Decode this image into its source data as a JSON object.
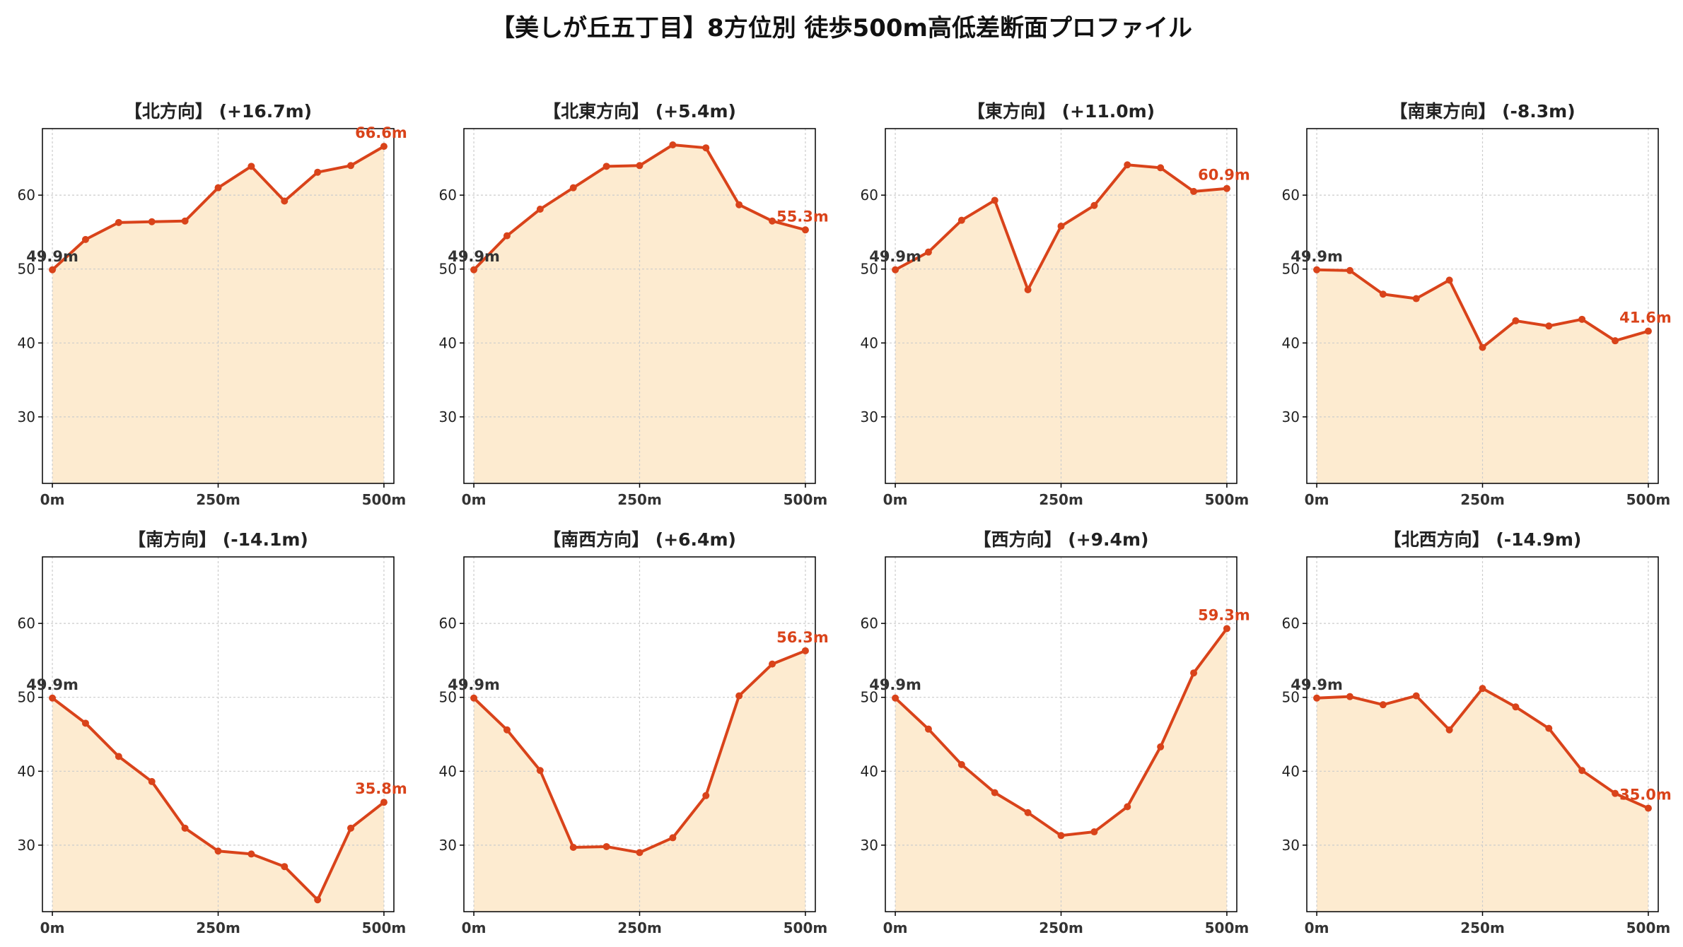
{
  "title": "【美しが丘五丁目】8方位別 徒歩500m高低差断面プロファイル",
  "colors": {
    "line": "#d9431a",
    "fill": "#fdebd0",
    "grid": "#cccccc",
    "start_label": "#333333"
  },
  "chart_data": [
    {
      "type": "area",
      "title": "【北方向】 (+16.7m)",
      "x": [
        0,
        50,
        100,
        150,
        200,
        250,
        300,
        350,
        400,
        450,
        500
      ],
      "y": [
        49.9,
        54.0,
        56.3,
        56.4,
        56.5,
        61.0,
        63.9,
        59.2,
        63.1,
        64.0,
        66.6
      ],
      "xticks": [
        "0m",
        "250m",
        "500m"
      ],
      "yticks": [
        30,
        40,
        50,
        60
      ],
      "ylim": [
        21,
        69
      ],
      "xlim": [
        -15,
        515
      ],
      "start_label": "49.9m",
      "end_label": "66.6m",
      "grid": true
    },
    {
      "type": "area",
      "title": "【北東方向】 (+5.4m)",
      "x": [
        0,
        50,
        100,
        150,
        200,
        250,
        300,
        350,
        400,
        450,
        500
      ],
      "y": [
        49.9,
        54.5,
        58.1,
        61.0,
        63.9,
        64.0,
        66.8,
        66.4,
        58.7,
        56.5,
        55.3
      ],
      "xticks": [
        "0m",
        "250m",
        "500m"
      ],
      "yticks": [
        30,
        40,
        50,
        60
      ],
      "ylim": [
        21,
        69
      ],
      "xlim": [
        -15,
        515
      ],
      "start_label": "49.9m",
      "end_label": "55.3m",
      "grid": true
    },
    {
      "type": "area",
      "title": "【東方向】 (+11.0m)",
      "x": [
        0,
        50,
        100,
        150,
        200,
        250,
        300,
        350,
        400,
        450,
        500
      ],
      "y": [
        49.9,
        52.3,
        56.6,
        59.3,
        47.2,
        55.8,
        58.6,
        64.1,
        63.7,
        60.5,
        60.9
      ],
      "xticks": [
        "0m",
        "250m",
        "500m"
      ],
      "yticks": [
        30,
        40,
        50,
        60
      ],
      "ylim": [
        21,
        69
      ],
      "xlim": [
        -15,
        515
      ],
      "start_label": "49.9m",
      "end_label": "60.9m",
      "grid": true
    },
    {
      "type": "area",
      "title": "【南東方向】 (-8.3m)",
      "x": [
        0,
        50,
        100,
        150,
        200,
        250,
        300,
        350,
        400,
        450,
        500
      ],
      "y": [
        49.9,
        49.8,
        46.6,
        46.0,
        48.5,
        39.4,
        43.0,
        42.3,
        43.2,
        40.3,
        41.6
      ],
      "xticks": [
        "0m",
        "250m",
        "500m"
      ],
      "yticks": [
        30,
        40,
        50,
        60
      ],
      "ylim": [
        21,
        69
      ],
      "xlim": [
        -15,
        515
      ],
      "start_label": "49.9m",
      "end_label": "41.6m",
      "grid": true
    },
    {
      "type": "area",
      "title": "【南方向】 (-14.1m)",
      "x": [
        0,
        50,
        100,
        150,
        200,
        250,
        300,
        350,
        400,
        450,
        500
      ],
      "y": [
        49.9,
        46.5,
        42.0,
        38.6,
        32.3,
        29.2,
        28.8,
        27.1,
        22.6,
        32.3,
        35.8
      ],
      "xticks": [
        "0m",
        "250m",
        "500m"
      ],
      "yticks": [
        30,
        40,
        50,
        60
      ],
      "ylim": [
        21,
        69
      ],
      "xlim": [
        -15,
        515
      ],
      "start_label": "49.9m",
      "end_label": "35.8m",
      "grid": true
    },
    {
      "type": "area",
      "title": "【南西方向】 (+6.4m)",
      "x": [
        0,
        50,
        100,
        150,
        200,
        250,
        300,
        350,
        400,
        450,
        500
      ],
      "y": [
        49.9,
        45.6,
        40.1,
        29.7,
        29.8,
        29.0,
        31.0,
        36.7,
        50.2,
        54.5,
        56.3
      ],
      "xticks": [
        "0m",
        "250m",
        "500m"
      ],
      "yticks": [
        30,
        40,
        50,
        60
      ],
      "ylim": [
        21,
        69
      ],
      "xlim": [
        -15,
        515
      ],
      "start_label": "49.9m",
      "end_label": "56.3m",
      "grid": true
    },
    {
      "type": "area",
      "title": "【西方向】 (+9.4m)",
      "x": [
        0,
        50,
        100,
        150,
        200,
        250,
        300,
        350,
        400,
        450,
        500
      ],
      "y": [
        49.9,
        45.7,
        40.9,
        37.1,
        34.4,
        31.3,
        31.8,
        35.2,
        43.3,
        53.3,
        59.3
      ],
      "xticks": [
        "0m",
        "250m",
        "500m"
      ],
      "yticks": [
        30,
        40,
        50,
        60
      ],
      "ylim": [
        21,
        69
      ],
      "xlim": [
        -15,
        515
      ],
      "start_label": "49.9m",
      "end_label": "59.3m",
      "grid": true
    },
    {
      "type": "area",
      "title": "【北西方向】 (-14.9m)",
      "x": [
        0,
        50,
        100,
        150,
        200,
        250,
        300,
        350,
        400,
        450,
        500
      ],
      "y": [
        49.9,
        50.1,
        49.0,
        50.2,
        45.6,
        51.2,
        48.7,
        45.8,
        40.1,
        37.0,
        35.0
      ],
      "xticks": [
        "0m",
        "250m",
        "500m"
      ],
      "yticks": [
        30,
        40,
        50,
        60
      ],
      "ylim": [
        21,
        69
      ],
      "xlim": [
        -15,
        515
      ],
      "start_label": "49.9m",
      "end_label": "35.0m",
      "grid": true
    }
  ]
}
